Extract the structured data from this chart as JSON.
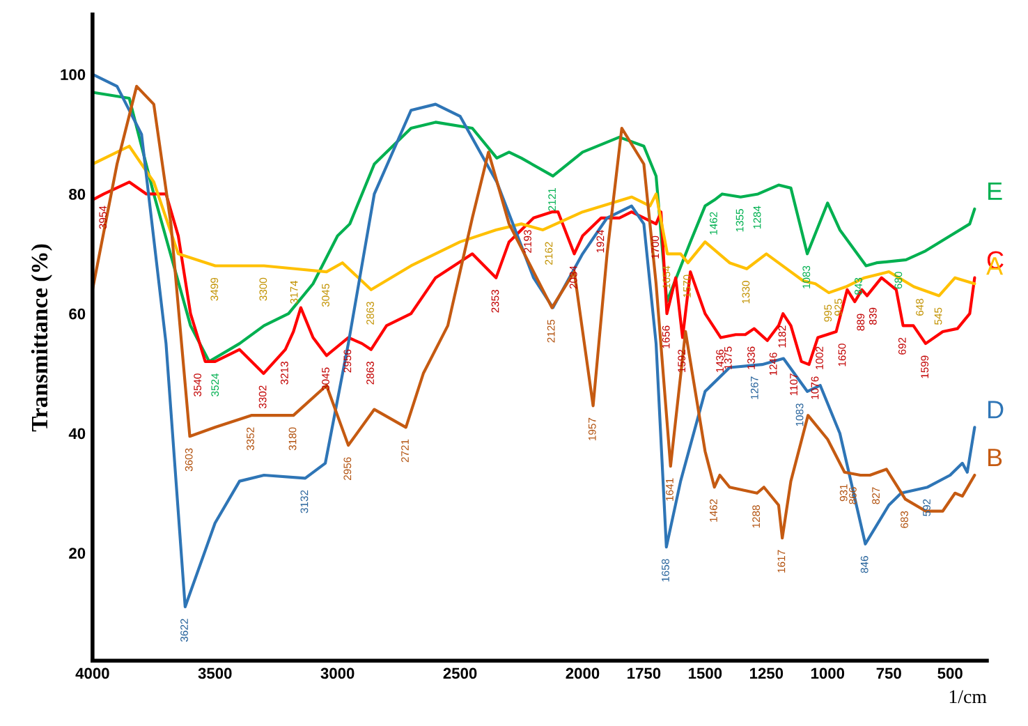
{
  "chart_data": {
    "type": "line",
    "ylabel": "Transmittance (%)",
    "xlabel": "1/cm",
    "xlim": [
      4000,
      350
    ],
    "ylim": [
      2,
      110
    ],
    "xticks": [
      4000,
      3500,
      3000,
      2500,
      2000,
      1750,
      1500,
      1250,
      1000,
      750,
      500
    ],
    "yticks": [
      20,
      40,
      60,
      80,
      100
    ],
    "grid": false,
    "legend": false,
    "marker": "none",
    "line_style": "solid",
    "series": [
      {
        "name": "E",
        "color": "#00b050",
        "x": [
          4000,
          3850,
          3750,
          3600,
          3524,
          3400,
          3300,
          3200,
          3100,
          3000,
          2950,
          2850,
          2700,
          2600,
          2450,
          2350,
          2300,
          2250,
          2121,
          2000,
          1850,
          1750,
          1700,
          1656,
          1560,
          1500,
          1462,
          1430,
          1355,
          1284,
          1200,
          1150,
          1083,
          1000,
          950,
          843,
          800,
          680,
          600,
          500,
          420,
          400
        ],
        "values": [
          97,
          96,
          80,
          58,
          52,
          55,
          58,
          60,
          65,
          73,
          75,
          85,
          91,
          92,
          91,
          86,
          87,
          86,
          83,
          87,
          89.5,
          88,
          83,
          62,
          72,
          78,
          79,
          80,
          79.5,
          80,
          81.5,
          81,
          70,
          78.5,
          74,
          68,
          68.5,
          69,
          70.5,
          73,
          75,
          77.5
        ]
      },
      {
        "name": "C",
        "color": "#ff0000",
        "x": [
          4000,
          3954,
          3850,
          3780,
          3700,
          3650,
          3600,
          3540,
          3500,
          3400,
          3302,
          3213,
          3180,
          3150,
          3100,
          3045,
          2956,
          2900,
          2863,
          2800,
          2700,
          2600,
          2450,
          2353,
          2300,
          2200,
          2125,
          2100,
          2034,
          2000,
          1924,
          1850,
          1800,
          1700,
          1680,
          1656,
          1620,
          1592,
          1560,
          1500,
          1436,
          1375,
          1336,
          1300,
          1246,
          1200,
          1182,
          1150,
          1107,
          1076,
          1040,
          1002,
          965,
          920,
          889,
          860,
          839,
          780,
          720,
          692,
          650,
          600,
          530,
          470,
          420,
          400
        ],
        "values": [
          79,
          80,
          82,
          80,
          80,
          73,
          60,
          52,
          52,
          54,
          50,
          54,
          57,
          61,
          56,
          53,
          56,
          55,
          54,
          58,
          60,
          66,
          70,
          66,
          72,
          76,
          77,
          77,
          70,
          73,
          76,
          76,
          77,
          75,
          77,
          60,
          66,
          56,
          67,
          60,
          56,
          56.5,
          56.5,
          57.5,
          55.5,
          58,
          60,
          58,
          52,
          51.5,
          56,
          56.5,
          57,
          64,
          62,
          64,
          63,
          66,
          64,
          58,
          58,
          55,
          57,
          57.5,
          60,
          66
        ]
      },
      {
        "name": "A",
        "color": "#ffc000",
        "x": [
          4000,
          3850,
          3750,
          3650,
          3499,
          3300,
          3174,
          3045,
          2980,
          2863,
          2700,
          2500,
          2353,
          2250,
          2162,
          2000,
          1800,
          1725,
          1700,
          1654,
          1600,
          1570,
          1500,
          1400,
          1330,
          1250,
          1150,
          1100,
          1050,
          995,
          925,
          850,
          750,
          648,
          545,
          480,
          400
        ],
        "values": [
          85,
          88,
          82,
          70,
          68,
          68,
          67.5,
          67,
          68.5,
          64,
          68,
          72,
          74,
          75,
          74,
          77,
          79.5,
          78,
          80,
          70,
          70,
          68.5,
          72,
          68.5,
          67.5,
          70,
          67,
          65.5,
          65,
          63.5,
          64.5,
          66,
          67,
          64.5,
          63,
          66,
          65
        ]
      },
      {
        "name": "D",
        "color": "#2e75b6",
        "x": [
          4000,
          3900,
          3800,
          3700,
          3622,
          3500,
          3400,
          3300,
          3132,
          3050,
          2956,
          2850,
          2700,
          2600,
          2500,
          2350,
          2200,
          2121,
          2000,
          1900,
          1800,
          1750,
          1700,
          1658,
          1600,
          1500,
          1400,
          1267,
          1180,
          1083,
          1030,
          950,
          846,
          750,
          700,
          592,
          500,
          450,
          430,
          400
        ],
        "values": [
          100,
          98,
          90,
          55,
          11,
          25,
          32,
          33,
          32.5,
          35,
          55,
          80,
          94,
          95,
          93,
          82,
          66,
          61,
          70,
          76,
          78,
          75,
          55,
          21,
          32,
          47,
          51,
          51.5,
          52.5,
          47,
          48,
          40,
          21.5,
          28,
          30,
          31,
          33,
          35,
          33.5,
          41
        ]
      },
      {
        "name": "B",
        "color": "#c55a11",
        "x": [
          4000,
          3900,
          3820,
          3750,
          3680,
          3603,
          3500,
          3352,
          3180,
          3045,
          2956,
          2850,
          2721,
          2650,
          2550,
          2450,
          2384,
          2300,
          2200,
          2125,
          2034,
          1957,
          1900,
          1840,
          1750,
          1700,
          1641,
          1580,
          1500,
          1462,
          1440,
          1400,
          1288,
          1260,
          1200,
          1185,
          1150,
          1080,
          1000,
          931,
          866,
          827,
          760,
          683,
          600,
          530,
          480,
          450,
          400
        ],
        "values": [
          64,
          85,
          98,
          95,
          75,
          39.5,
          41,
          43,
          43,
          48,
          38,
          44,
          41,
          50,
          58,
          76,
          87,
          75,
          67,
          61,
          67,
          44.6,
          70,
          91,
          85,
          65,
          34.5,
          57,
          37,
          31,
          33,
          31,
          30,
          31,
          28,
          22.5,
          32,
          43,
          39,
          33.5,
          33,
          33,
          34,
          29,
          27,
          27,
          30,
          29.5,
          33
        ]
      }
    ],
    "annotations": [
      {
        "text": "3954",
        "x": 3954,
        "y": 80
      },
      {
        "text": "3540",
        "x": 3540,
        "y": 52
      },
      {
        "text": "3302",
        "x": 3302,
        "y": 50
      },
      {
        "text": "3213",
        "x": 3213,
        "y": 54
      },
      {
        "text": "3045",
        "x": 3045,
        "y": 53
      },
      {
        "text": "2956",
        "x": 2956,
        "y": 56
      },
      {
        "text": "2863",
        "x": 2863,
        "y": 54
      },
      {
        "text": "2353",
        "x": 2353,
        "y": 66
      },
      {
        "text": "2193",
        "x": 2193,
        "y": 76
      },
      {
        "text": "2034",
        "x": 2034,
        "y": 70
      },
      {
        "text": "1924",
        "x": 1924,
        "y": 76
      },
      {
        "text": "1700",
        "x": 1700,
        "y": 75
      },
      {
        "text": "1656",
        "x": 1656,
        "y": 60
      },
      {
        "text": "1592",
        "x": 1592,
        "y": 56
      },
      {
        "text": "1436",
        "x": 1436,
        "y": 56
      },
      {
        "text": "1375",
        "x": 1375,
        "y": 56.5
      },
      {
        "text": "1336",
        "x": 1336,
        "y": 56.5
      },
      {
        "text": "1246",
        "x": 1246,
        "y": 55.5
      },
      {
        "text": "1182",
        "x": 1182,
        "y": 60
      },
      {
        "text": "1107",
        "x": 1107,
        "y": 52
      },
      {
        "text": "1076",
        "x": 1076,
        "y": 51.5
      },
      {
        "text": "1002",
        "x": 1002,
        "y": 56.5
      },
      {
        "text": "1650",
        "x": 965,
        "y": 57
      },
      {
        "text": "889",
        "x": 889,
        "y": 62
      },
      {
        "text": "839",
        "x": 839,
        "y": 63
      },
      {
        "text": "692",
        "x": 692,
        "y": 58
      },
      {
        "text": "1599",
        "x": 600,
        "y": 55
      },
      {
        "text": "3499",
        "x": 3499,
        "y": 68
      },
      {
        "text": "3300",
        "x": 3300,
        "y": 68
      },
      {
        "text": "3174",
        "x": 3174,
        "y": 67.5
      },
      {
        "text": "3045",
        "x": 3045,
        "y": 67
      },
      {
        "text": "2863",
        "x": 2863,
        "y": 64
      },
      {
        "text": "2162",
        "x": 2162,
        "y": 74
      },
      {
        "text": "1654",
        "x": 1654,
        "y": 70
      },
      {
        "text": "1570",
        "x": 1570,
        "y": 68.5
      },
      {
        "text": "1330",
        "x": 1330,
        "y": 67.5
      },
      {
        "text": "995",
        "x": 995,
        "y": 63.5
      },
      {
        "text": "925",
        "x": 925,
        "y": 64.5
      },
      {
        "text": "648",
        "x": 648,
        "y": 64.5
      },
      {
        "text": "545",
        "x": 545,
        "y": 63
      },
      {
        "text": "3524",
        "x": 3524,
        "y": 52
      },
      {
        "text": "2121",
        "x": 2121,
        "y": 83
      },
      {
        "text": "1462",
        "x": 1462,
        "y": 79
      },
      {
        "text": "1355",
        "x": 1355,
        "y": 79.5
      },
      {
        "text": "1284",
        "x": 1284,
        "y": 80
      },
      {
        "text": "1083",
        "x": 1083,
        "y": 70
      },
      {
        "text": "843",
        "x": 843,
        "y": 68
      },
      {
        "text": "680",
        "x": 680,
        "y": 69
      },
      {
        "text": "3622",
        "x": 3622,
        "y": 11
      },
      {
        "text": "3132",
        "x": 3132,
        "y": 32.5
      },
      {
        "text": "1658",
        "x": 1658,
        "y": 21
      },
      {
        "text": "1267",
        "x": 1267,
        "y": 51.5
      },
      {
        "text": "1083",
        "x": 1083,
        "y": 47
      },
      {
        "text": "846",
        "x": 846,
        "y": 21.5
      },
      {
        "text": "592",
        "x": 592,
        "y": 31
      },
      {
        "text": "3603",
        "x": 3603,
        "y": 39.5
      },
      {
        "text": "3352",
        "x": 3352,
        "y": 43
      },
      {
        "text": "3180",
        "x": 3180,
        "y": 43
      },
      {
        "text": "2956",
        "x": 2956,
        "y": 38
      },
      {
        "text": "2721",
        "x": 2721,
        "y": 41
      },
      {
        "text": "2125",
        "x": 2125,
        "y": 61
      },
      {
        "text": "1957",
        "x": 1957,
        "y": 44.6
      },
      {
        "text": "1641",
        "x": 1641,
        "y": 34.5
      },
      {
        "text": "1462",
        "x": 1462,
        "y": 31
      },
      {
        "text": "1288",
        "x": 1288,
        "y": 30
      },
      {
        "text": "1617",
        "x": 1185,
        "y": 22.5
      },
      {
        "text": "931",
        "x": 931,
        "y": 33.5
      },
      {
        "text": "866",
        "x": 866,
        "y": 33
      },
      {
        "text": "827",
        "x": 827,
        "y": 33
      },
      {
        "text": "683",
        "x": 683,
        "y": 29
      }
    ]
  }
}
